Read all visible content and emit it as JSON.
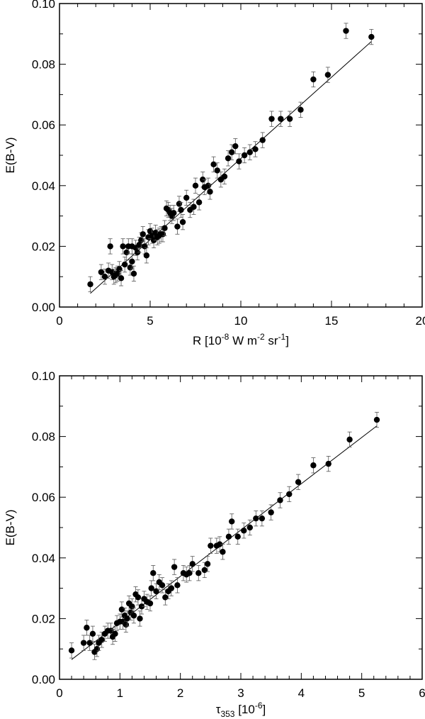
{
  "chart_data": [
    {
      "type": "scatter",
      "title": "",
      "xlabel": {
        "main": "R [10",
        "sup1": "-8",
        "mid1": " W m",
        "sup2": "-2",
        "mid2": " sr",
        "sup3": "-1",
        "end": "]"
      },
      "ylabel": "E(B-V)",
      "xlim": [
        0,
        20
      ],
      "ylim": [
        0,
        0.1
      ],
      "xticks": [
        "0",
        "5",
        "10",
        "15",
        "20"
      ],
      "yticks": [
        "0.00",
        "0.02",
        "0.04",
        "0.06",
        "0.08",
        "0.10"
      ],
      "grid": false,
      "error_bars": true,
      "fit_line": {
        "x": [
          1.7,
          17.2
        ],
        "y": [
          0.0045,
          0.0875
        ]
      },
      "points": [
        [
          1.7,
          0.0075,
          0.0025
        ],
        [
          2.3,
          0.0115,
          0.0025
        ],
        [
          2.5,
          0.01,
          0.0025
        ],
        [
          2.7,
          0.012,
          0.0025
        ],
        [
          2.8,
          0.02,
          0.0025
        ],
        [
          2.9,
          0.0115,
          0.0025
        ],
        [
          3.0,
          0.01,
          0.0025
        ],
        [
          3.1,
          0.0105,
          0.0025
        ],
        [
          3.2,
          0.011,
          0.0025
        ],
        [
          3.3,
          0.0125,
          0.0025
        ],
        [
          3.4,
          0.0095,
          0.0025
        ],
        [
          3.5,
          0.02,
          0.0025
        ],
        [
          3.6,
          0.014,
          0.0025
        ],
        [
          3.7,
          0.018,
          0.0025
        ],
        [
          3.8,
          0.02,
          0.0025
        ],
        [
          3.9,
          0.013,
          0.0025
        ],
        [
          4.0,
          0.015,
          0.0025
        ],
        [
          4.0,
          0.02,
          0.0025
        ],
        [
          4.1,
          0.011,
          0.0025
        ],
        [
          4.2,
          0.0195,
          0.0025
        ],
        [
          4.3,
          0.018,
          0.0025
        ],
        [
          4.4,
          0.0205,
          0.0025
        ],
        [
          4.5,
          0.022,
          0.0025
        ],
        [
          4.6,
          0.024,
          0.0025
        ],
        [
          4.7,
          0.02,
          0.0025
        ],
        [
          4.8,
          0.017,
          0.0025
        ],
        [
          4.9,
          0.023,
          0.0025
        ],
        [
          5.0,
          0.025,
          0.0025
        ],
        [
          5.1,
          0.0235,
          0.0025
        ],
        [
          5.2,
          0.022,
          0.0025
        ],
        [
          5.3,
          0.0245,
          0.0025
        ],
        [
          5.4,
          0.023,
          0.0025
        ],
        [
          5.5,
          0.0235,
          0.0025
        ],
        [
          5.6,
          0.024,
          0.0025
        ],
        [
          5.7,
          0.024,
          0.0025
        ],
        [
          5.8,
          0.026,
          0.0025
        ],
        [
          5.9,
          0.0325,
          0.0025
        ],
        [
          6.0,
          0.032,
          0.0025
        ],
        [
          6.1,
          0.031,
          0.0025
        ],
        [
          6.2,
          0.03,
          0.0025
        ],
        [
          6.3,
          0.031,
          0.0025
        ],
        [
          6.5,
          0.0265,
          0.0025
        ],
        [
          6.6,
          0.034,
          0.0025
        ],
        [
          6.7,
          0.032,
          0.0025
        ],
        [
          6.8,
          0.028,
          0.0025
        ],
        [
          7.0,
          0.036,
          0.0025
        ],
        [
          7.2,
          0.032,
          0.0025
        ],
        [
          7.4,
          0.033,
          0.0025
        ],
        [
          7.5,
          0.04,
          0.0025
        ],
        [
          7.7,
          0.0345,
          0.0025
        ],
        [
          7.9,
          0.042,
          0.0025
        ],
        [
          8.0,
          0.0395,
          0.0025
        ],
        [
          8.2,
          0.04,
          0.0025
        ],
        [
          8.3,
          0.038,
          0.0025
        ],
        [
          8.5,
          0.047,
          0.0025
        ],
        [
          8.7,
          0.045,
          0.0025
        ],
        [
          8.9,
          0.042,
          0.0025
        ],
        [
          9.1,
          0.043,
          0.0025
        ],
        [
          9.3,
          0.049,
          0.0025
        ],
        [
          9.5,
          0.051,
          0.0025
        ],
        [
          9.7,
          0.053,
          0.0025
        ],
        [
          9.9,
          0.048,
          0.0025
        ],
        [
          10.2,
          0.05,
          0.0025
        ],
        [
          10.5,
          0.051,
          0.0025
        ],
        [
          10.8,
          0.052,
          0.0025
        ],
        [
          11.2,
          0.055,
          0.0025
        ],
        [
          11.7,
          0.062,
          0.0025
        ],
        [
          12.2,
          0.062,
          0.0025
        ],
        [
          12.7,
          0.062,
          0.0025
        ],
        [
          13.3,
          0.065,
          0.0025
        ],
        [
          14.0,
          0.075,
          0.0025
        ],
        [
          14.8,
          0.0765,
          0.0025
        ],
        [
          15.8,
          0.091,
          0.0025
        ],
        [
          17.2,
          0.089,
          0.0025
        ]
      ]
    },
    {
      "type": "scatter",
      "title": "",
      "xlabel": {
        "main": "τ",
        "sub": "353",
        "end": " [10",
        "sup": "-6",
        "close": "]"
      },
      "ylabel": "E(B-V)",
      "xlim": [
        0,
        6
      ],
      "ylim": [
        0,
        0.1
      ],
      "xticks": [
        "0",
        "1",
        "2",
        "3",
        "4",
        "5",
        "6"
      ],
      "yticks": [
        "0.00",
        "0.02",
        "0.04",
        "0.06",
        "0.08",
        "0.10"
      ],
      "grid": false,
      "error_bars": true,
      "fit_line": {
        "x": [
          0.2,
          5.25
        ],
        "y": [
          0.0065,
          0.0835
        ]
      },
      "points": [
        [
          0.2,
          0.0095,
          0.0025
        ],
        [
          0.4,
          0.012,
          0.0025
        ],
        [
          0.45,
          0.017,
          0.0025
        ],
        [
          0.5,
          0.012,
          0.0025
        ],
        [
          0.55,
          0.015,
          0.0025
        ],
        [
          0.58,
          0.009,
          0.0025
        ],
        [
          0.62,
          0.01,
          0.0025
        ],
        [
          0.65,
          0.012,
          0.0025
        ],
        [
          0.7,
          0.013,
          0.0025
        ],
        [
          0.75,
          0.015,
          0.0025
        ],
        [
          0.8,
          0.016,
          0.0025
        ],
        [
          0.85,
          0.016,
          0.0025
        ],
        [
          0.88,
          0.014,
          0.0025
        ],
        [
          0.92,
          0.015,
          0.0025
        ],
        [
          0.95,
          0.0185,
          0.0025
        ],
        [
          1.0,
          0.019,
          0.0025
        ],
        [
          1.03,
          0.023,
          0.0025
        ],
        [
          1.05,
          0.019,
          0.0025
        ],
        [
          1.08,
          0.021,
          0.0025
        ],
        [
          1.1,
          0.018,
          0.0025
        ],
        [
          1.12,
          0.02,
          0.0025
        ],
        [
          1.15,
          0.025,
          0.0025
        ],
        [
          1.18,
          0.022,
          0.0025
        ],
        [
          1.2,
          0.024,
          0.0025
        ],
        [
          1.23,
          0.021,
          0.0025
        ],
        [
          1.26,
          0.028,
          0.0025
        ],
        [
          1.3,
          0.027,
          0.0025
        ],
        [
          1.33,
          0.02,
          0.0025
        ],
        [
          1.36,
          0.024,
          0.0025
        ],
        [
          1.4,
          0.0265,
          0.0025
        ],
        [
          1.45,
          0.0255,
          0.0025
        ],
        [
          1.5,
          0.025,
          0.0025
        ],
        [
          1.52,
          0.03,
          0.0025
        ],
        [
          1.55,
          0.035,
          0.0025
        ],
        [
          1.6,
          0.029,
          0.0025
        ],
        [
          1.65,
          0.032,
          0.0025
        ],
        [
          1.7,
          0.031,
          0.0025
        ],
        [
          1.75,
          0.027,
          0.0025
        ],
        [
          1.8,
          0.029,
          0.0025
        ],
        [
          1.85,
          0.03,
          0.0025
        ],
        [
          1.9,
          0.037,
          0.0025
        ],
        [
          1.95,
          0.031,
          0.0025
        ],
        [
          2.05,
          0.035,
          0.0025
        ],
        [
          2.1,
          0.0345,
          0.0025
        ],
        [
          2.15,
          0.035,
          0.0025
        ],
        [
          2.2,
          0.038,
          0.0025
        ],
        [
          2.3,
          0.035,
          0.0025
        ],
        [
          2.4,
          0.036,
          0.0025
        ],
        [
          2.45,
          0.038,
          0.0025
        ],
        [
          2.5,
          0.044,
          0.0025
        ],
        [
          2.6,
          0.044,
          0.0025
        ],
        [
          2.65,
          0.0445,
          0.0025
        ],
        [
          2.7,
          0.042,
          0.0025
        ],
        [
          2.8,
          0.047,
          0.0025
        ],
        [
          2.85,
          0.052,
          0.0025
        ],
        [
          2.95,
          0.047,
          0.0025
        ],
        [
          3.05,
          0.049,
          0.0025
        ],
        [
          3.15,
          0.05,
          0.0025
        ],
        [
          3.25,
          0.053,
          0.0025
        ],
        [
          3.35,
          0.053,
          0.0025
        ],
        [
          3.5,
          0.055,
          0.0025
        ],
        [
          3.65,
          0.059,
          0.0025
        ],
        [
          3.8,
          0.061,
          0.0025
        ],
        [
          3.95,
          0.065,
          0.0025
        ],
        [
          4.2,
          0.0705,
          0.0025
        ],
        [
          4.45,
          0.071,
          0.0025
        ],
        [
          4.8,
          0.079,
          0.0025
        ],
        [
          5.25,
          0.0855,
          0.0025
        ]
      ]
    }
  ]
}
